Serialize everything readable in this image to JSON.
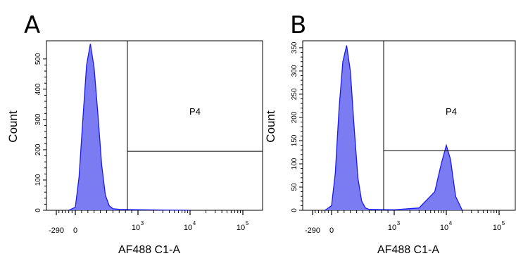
{
  "chart_data": [
    {
      "type": "area",
      "panel_label": "A",
      "ylabel": "Count",
      "xlabel": "AF488 C1-A",
      "x_scale": "biexponential",
      "x_tick_labels": [
        "-290",
        "0",
        "10",
        "10",
        "10"
      ],
      "x_tick_exponents": [
        "",
        "",
        "3",
        "4",
        "5"
      ],
      "y_tick_labels": [
        "0",
        "100",
        "200",
        "300",
        "400",
        "500"
      ],
      "y_ticks": [
        0,
        100,
        200,
        300,
        400,
        500
      ],
      "ylim": [
        0,
        560
      ],
      "gate": {
        "label": "P4",
        "x_start_label": "~600",
        "y_divider": 195
      },
      "series": [
        {
          "x": [
            "-100",
            "0",
            "60",
            "120",
            "180",
            "240",
            "300",
            "360",
            "420",
            "480",
            "540",
            "600",
            "700",
            "1000",
            "3000",
            "10000"
          ],
          "values": [
            0,
            10,
            110,
            300,
            480,
            550,
            470,
            320,
            150,
            50,
            15,
            5,
            3,
            2,
            1,
            0
          ]
        }
      ],
      "fill_color": "#7b7bf2",
      "line_color": "#1a1aee"
    },
    {
      "type": "area",
      "panel_label": "B",
      "ylabel": "Count",
      "xlabel": "AF488 C1-A",
      "x_scale": "biexponential",
      "x_tick_labels": [
        "-290",
        "0",
        "10",
        "10",
        "10"
      ],
      "x_tick_exponents": [
        "",
        "",
        "3",
        "4",
        "5"
      ],
      "y_tick_labels": [
        "0",
        "50",
        "100",
        "150",
        "200",
        "250",
        "300",
        "350"
      ],
      "y_ticks": [
        0,
        50,
        100,
        150,
        200,
        250,
        300,
        350
      ],
      "ylim": [
        0,
        365
      ],
      "gate": {
        "label": "P4",
        "x_start_label": "~600",
        "y_divider": 128
      },
      "series": [
        {
          "x": [
            "-100",
            "0",
            "60",
            "120",
            "180",
            "240",
            "300",
            "360",
            "420",
            "480",
            "540",
            "600",
            "1000",
            "3000",
            "6000",
            "8000",
            "10000",
            "12000",
            "15000",
            "20000"
          ],
          "values": [
            0,
            10,
            80,
            220,
            320,
            355,
            300,
            180,
            70,
            20,
            5,
            2,
            1,
            5,
            40,
            100,
            140,
            110,
            30,
            0
          ]
        }
      ],
      "fill_color": "#7b7bf2",
      "line_color": "#1a1aee"
    }
  ]
}
